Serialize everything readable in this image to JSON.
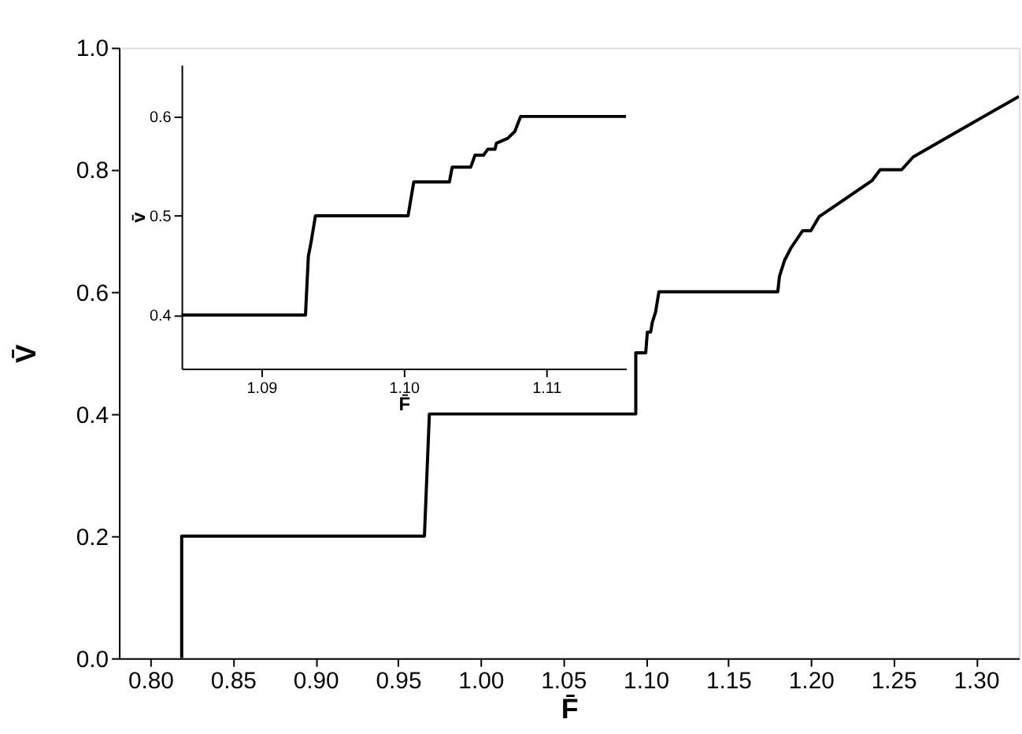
{
  "chart_data": [
    {
      "type": "line",
      "xlabel": "F̄",
      "ylabel": "V̄",
      "xlim": [
        0.781,
        1.326
      ],
      "ylim": [
        0,
        1
      ],
      "xticks": [
        {
          "value": 0.8,
          "label": "0.80"
        },
        {
          "value": 0.85,
          "label": "0.85"
        },
        {
          "value": 0.9,
          "label": "0.90"
        },
        {
          "value": 0.95,
          "label": "0.95"
        },
        {
          "value": 1.0,
          "label": "1.00"
        },
        {
          "value": 1.05,
          "label": "1.05"
        },
        {
          "value": 1.1,
          "label": "1.10"
        },
        {
          "value": 1.15,
          "label": "1.15"
        },
        {
          "value": 1.2,
          "label": "1.20"
        },
        {
          "value": 1.25,
          "label": "1.25"
        },
        {
          "value": 1.3,
          "label": "1.30"
        }
      ],
      "yticks": [
        {
          "value": 0,
          "label": "0.0"
        },
        0.2,
        0.4,
        0.6,
        0.8,
        {
          "value": 1,
          "label": "1.0"
        }
      ],
      "grid": false,
      "x": [
        0.819,
        0.819,
        0.966,
        0.969,
        1.094,
        1.094,
        1.1,
        1.101,
        1.103,
        1.104,
        1.106,
        1.108,
        1.18,
        1.181,
        1.184,
        1.188,
        1.195,
        1.2,
        1.205,
        1.237,
        1.242,
        1.255,
        1.262,
        1.293,
        1.326
      ],
      "series": [
        {
          "color": "#000000",
          "values": [
            0,
            0.2,
            0.2,
            0.4,
            0.4,
            0.5,
            0.5,
            0.534,
            0.534,
            0.55,
            0.567,
            0.6,
            0.6,
            0.625,
            0.651,
            0.672,
            0.7,
            0.7,
            0.723,
            0.782,
            0.8,
            0.8,
            0.821,
            0.869,
            0.92
          ]
        }
      ]
    },
    {
      "type": "line",
      "xlabel": "F̄",
      "ylabel": "v̄",
      "xlim": [
        1.0844,
        1.1156
      ],
      "ylim": [
        0.346,
        0.652
      ],
      "xticks": [
        {
          "value": 1.09,
          "label": "1.09"
        },
        {
          "value": 1.1,
          "label": "1.10"
        },
        {
          "value": 1.11,
          "label": "1.11"
        }
      ],
      "yticks": [
        0.4,
        0.5,
        0.6
      ],
      "grid": false,
      "x": [
        1.0844,
        1.0931,
        1.0933,
        1.0935,
        1.0938,
        1.1003,
        1.1007,
        1.1032,
        1.1034,
        1.1047,
        1.105,
        1.1056,
        1.1059,
        1.1064,
        1.1065,
        1.1073,
        1.1078,
        1.1082,
        1.1156
      ],
      "series": [
        {
          "color": "#000000",
          "values": [
            0.4,
            0.4,
            0.459,
            0.474,
            0.5,
            0.5,
            0.534,
            0.534,
            0.549,
            0.549,
            0.561,
            0.561,
            0.567,
            0.567,
            0.573,
            0.578,
            0.585,
            0.6,
            0.6
          ]
        }
      ]
    }
  ]
}
